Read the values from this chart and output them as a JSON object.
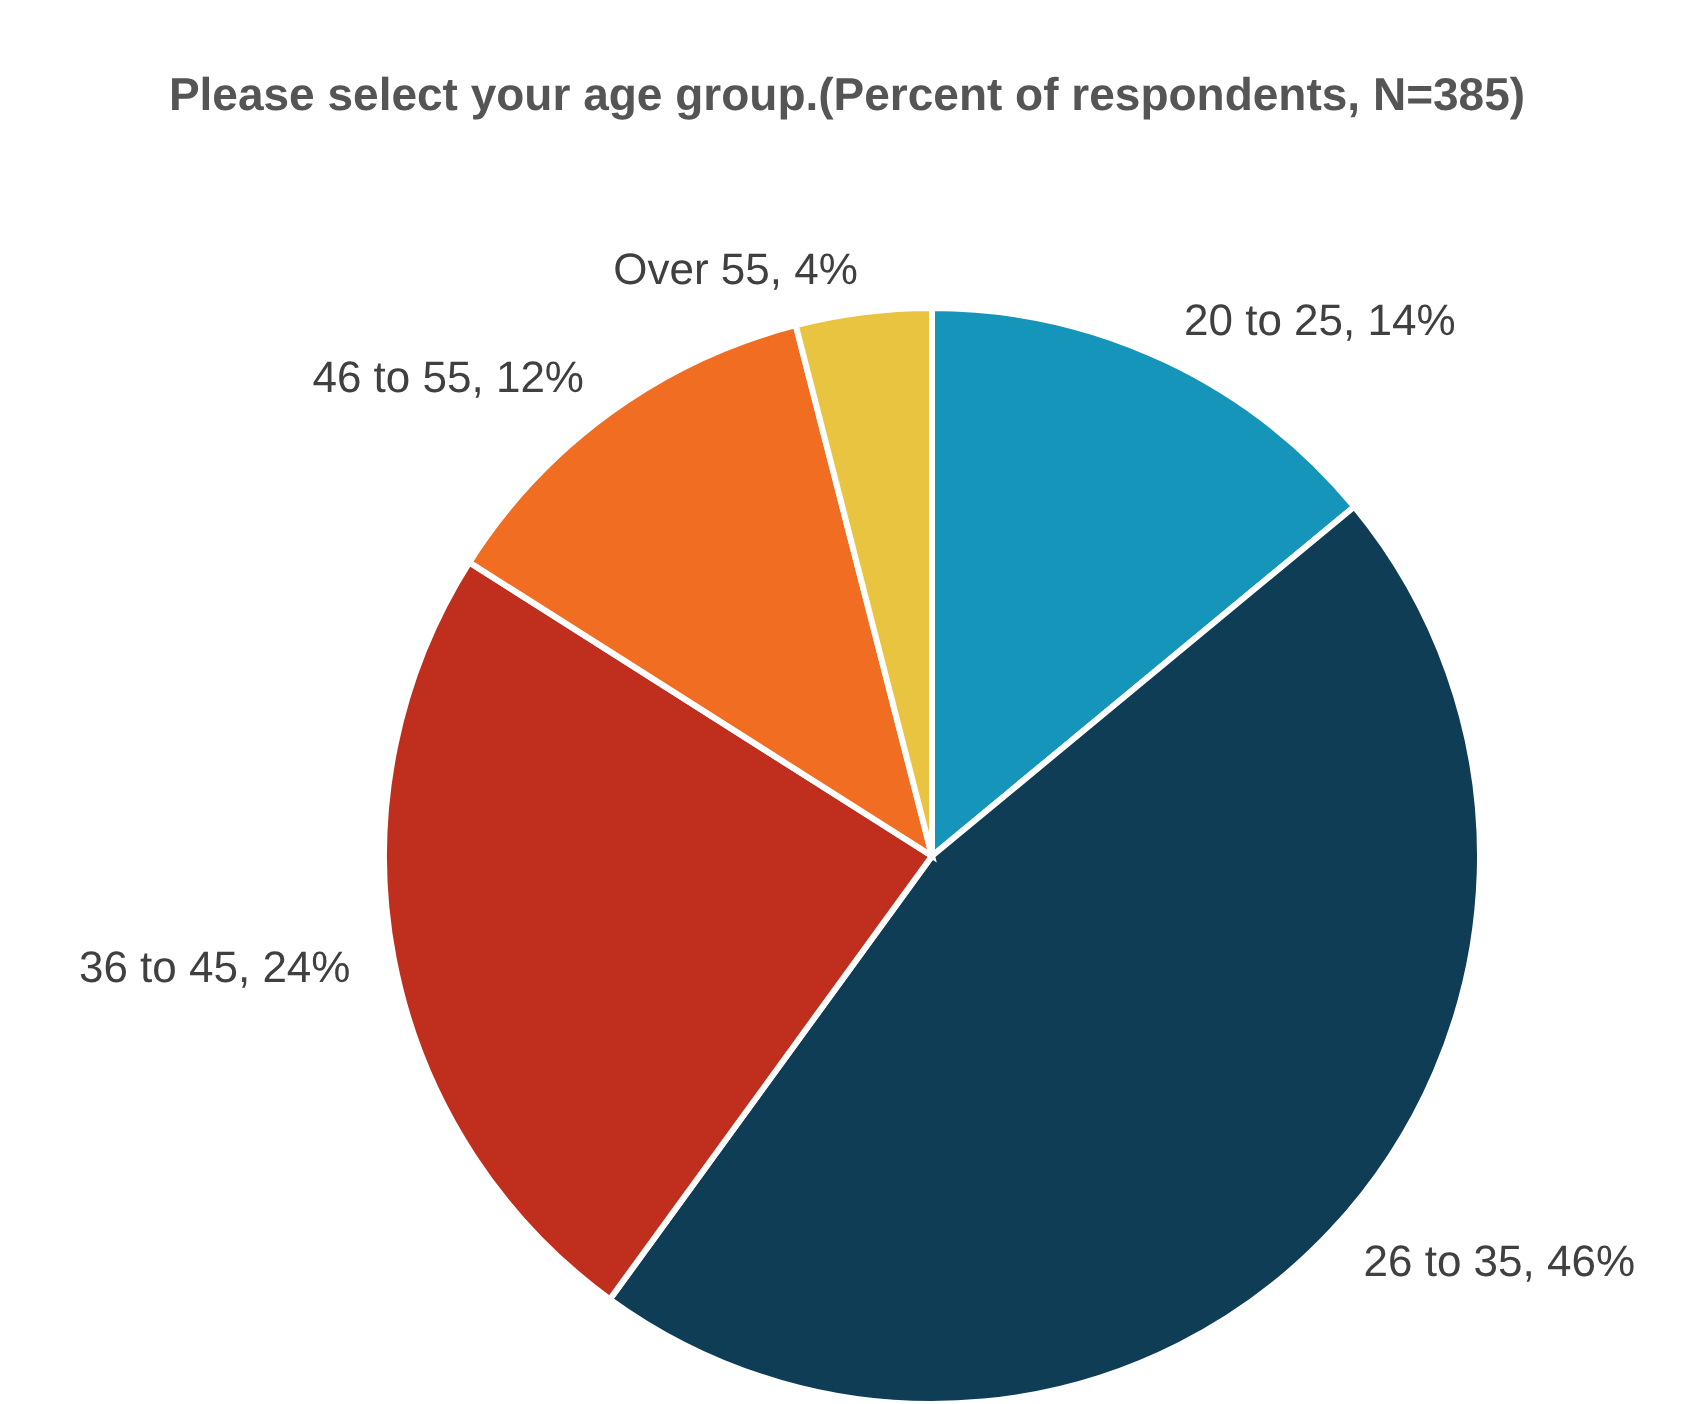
{
  "chart_data": {
    "type": "pie",
    "title": "Please select your age group.(Percent of respondents, N=385)",
    "categories": [
      "20 to 25",
      "26 to 35",
      "36 to 45",
      "46 to 55",
      "Over 55"
    ],
    "values": [
      14,
      46,
      24,
      12,
      4
    ],
    "value_labels": [
      "14%",
      "46%",
      "24%",
      "12%",
      "4%"
    ],
    "colors": [
      "#1695bb",
      "#0e3d55",
      "#c02e1d",
      "#f06d22",
      "#e8c440"
    ],
    "legend": false
  }
}
